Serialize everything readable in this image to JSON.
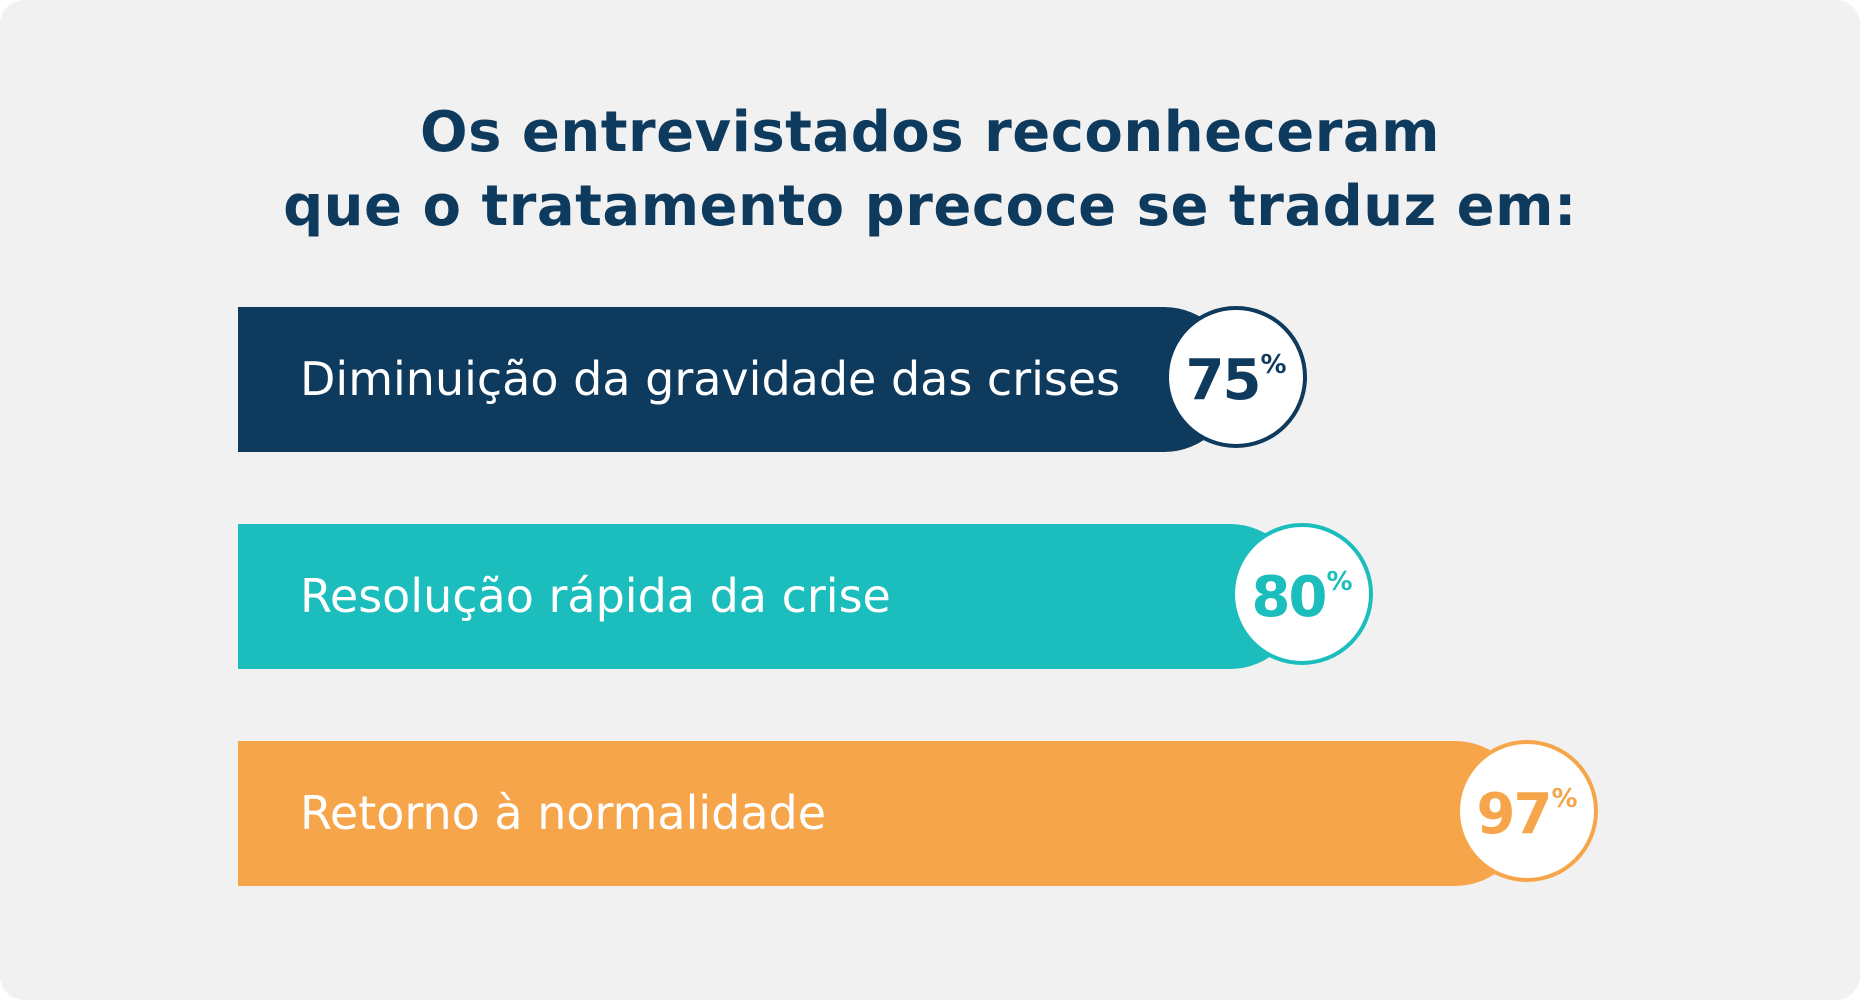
{
  "title_lines": [
    "Os entrevistados reconheceram",
    "que o tratamento precoce se traduz em:"
  ],
  "chart_data": {
    "type": "bar",
    "orientation": "horizontal",
    "categories": [
      "Diminuição da gravidade das crises",
      "Resolução rápida da crise",
      "Retorno à normalidade"
    ],
    "values": [
      75,
      80,
      97
    ],
    "value_labels": [
      "75",
      "80",
      "97"
    ],
    "unit": "%",
    "colors": [
      "#0e3a5e",
      "#1cbdbd",
      "#f7a54b"
    ],
    "grid": false,
    "legend": "none"
  }
}
